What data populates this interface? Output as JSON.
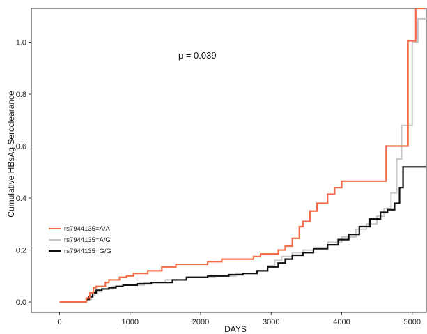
{
  "chart_data": {
    "type": "line",
    "title": "",
    "xlabel": "DAYS",
    "ylabel": "Cumulative HBsAg Seroclearance",
    "xlim": [
      -400,
      5200
    ],
    "ylim": [
      -0.04,
      1.13
    ],
    "x_ticks": [
      0,
      1000,
      2000,
      3000,
      4000,
      5000
    ],
    "y_ticks": [
      0.0,
      0.2,
      0.4,
      0.6,
      0.8,
      1.0
    ],
    "x_tick_labels": [
      "0",
      "1000",
      "2000",
      "3000",
      "4000",
      "5000"
    ],
    "y_tick_labels": [
      "0.0",
      "0.2",
      "0.4",
      "0.6",
      "0.8",
      "1.0"
    ],
    "grid": false,
    "legend_position": "lower-left",
    "annotation": "p = 0.039",
    "series": [
      {
        "name": "rs7944135=A/A",
        "color": "#f26b4a",
        "step": true,
        "x": [
          0,
          380,
          430,
          480,
          520,
          650,
          700,
          850,
          950,
          1050,
          1250,
          1450,
          1650,
          2100,
          2300,
          2750,
          2850,
          3100,
          3200,
          3300,
          3400,
          3450,
          3550,
          3650,
          3800,
          3900,
          4000,
          4300,
          4500,
          4630,
          4700,
          4940,
          5050,
          5200
        ],
        "y": [
          0.0,
          0.015,
          0.035,
          0.055,
          0.06,
          0.075,
          0.085,
          0.095,
          0.1,
          0.11,
          0.12,
          0.135,
          0.145,
          0.155,
          0.165,
          0.175,
          0.185,
          0.2,
          0.215,
          0.245,
          0.29,
          0.31,
          0.35,
          0.38,
          0.415,
          0.44,
          0.465,
          0.465,
          0.465,
          0.6,
          0.6,
          1.005,
          1.13,
          1.13
        ]
      },
      {
        "name": "rs7944135=A/G",
        "color": "#c8c8c8",
        "step": true,
        "x": [
          0,
          380,
          450,
          500,
          600,
          750,
          900,
          1200,
          1500,
          1800,
          2200,
          2500,
          2800,
          2950,
          3050,
          3150,
          3300,
          3450,
          3600,
          3800,
          4000,
          4200,
          4350,
          4500,
          4600,
          4700,
          4780,
          4850,
          5000,
          5080,
          5200
        ],
        "y": [
          0.0,
          0.01,
          0.025,
          0.04,
          0.05,
          0.06,
          0.065,
          0.075,
          0.085,
          0.095,
          0.1,
          0.11,
          0.12,
          0.14,
          0.16,
          0.175,
          0.19,
          0.2,
          0.21,
          0.23,
          0.25,
          0.28,
          0.3,
          0.33,
          0.36,
          0.42,
          0.55,
          0.68,
          1.0,
          1.09,
          1.09
        ]
      },
      {
        "name": "rs7944135=G/G",
        "color": "#111111",
        "step": true,
        "x": [
          0,
          380,
          420,
          470,
          520,
          600,
          700,
          800,
          900,
          1100,
          1300,
          1600,
          1800,
          2100,
          2400,
          2600,
          2800,
          2950,
          3100,
          3200,
          3300,
          3450,
          3600,
          3800,
          3950,
          4100,
          4250,
          4400,
          4550,
          4650,
          4750,
          4820,
          4870,
          5200
        ],
        "y": [
          0.0,
          0.01,
          0.02,
          0.035,
          0.045,
          0.05,
          0.055,
          0.06,
          0.065,
          0.07,
          0.075,
          0.085,
          0.095,
          0.1,
          0.105,
          0.11,
          0.12,
          0.135,
          0.15,
          0.165,
          0.18,
          0.19,
          0.205,
          0.22,
          0.24,
          0.26,
          0.29,
          0.32,
          0.345,
          0.355,
          0.38,
          0.44,
          0.52,
          0.52
        ]
      }
    ]
  }
}
